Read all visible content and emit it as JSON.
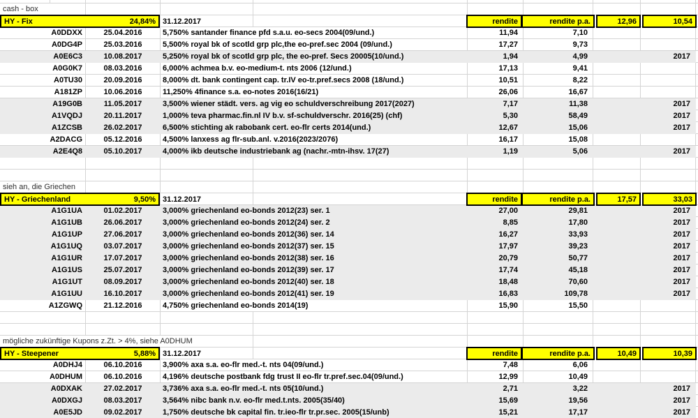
{
  "colors": {
    "header_highlight": "#ffff00",
    "row_highlight_fill": "#ebebeb",
    "gridline": "#d4d4d4",
    "text": "#000000"
  },
  "sections": [
    {
      "note": "cash - box",
      "header": {
        "label": "HY - Fix",
        "pct": "24,84%",
        "date": "31.12.2017",
        "col_rendite": "rendite",
        "col_rendite_pa": "rendite p.a.",
        "stat_1": "12,96",
        "stat_2": "10,54"
      },
      "rows": [
        {
          "id": "A0DDXX",
          "date": "25.04.2016",
          "desc": "5,750% santander finance pfd s.a.u. eo-secs 2004(09/und.)",
          "rendite": "11,94",
          "rendite_pa": "7,10",
          "year": "",
          "highlighted": false
        },
        {
          "id": "A0DG4P",
          "date": "25.03.2016",
          "desc": "5,500% royal bk of scotld grp plc,the eo-pref.sec 2004 (09/und.)",
          "rendite": "17,27",
          "rendite_pa": "9,73",
          "year": "",
          "highlighted": false
        },
        {
          "id": "A0E6C3",
          "date": "10.08.2017",
          "desc": "5,250% royal bk of scotld grp plc, the eo-pref. Secs 20005(10/und.)",
          "rendite": "1,94",
          "rendite_pa": "4,99",
          "year": "2017",
          "highlighted": true
        },
        {
          "id": "A0G0K7",
          "date": "08.03.2016",
          "desc": "6,000% achmea b.v. eo-medium-t. nts 2006 (12/und.)",
          "rendite": "17,13",
          "rendite_pa": "9,41",
          "year": "",
          "highlighted": false
        },
        {
          "id": "A0TU30",
          "date": "20.09.2016",
          "desc": "8,000% dt. bank contingent cap. tr.IV eo-tr.pref.secs 2008 (18/und.)",
          "rendite": "10,51",
          "rendite_pa": "8,22",
          "year": "",
          "highlighted": false
        },
        {
          "id": "A181ZP",
          "date": "10.06.2016",
          "desc": "11,250% 4finance s.a. eo-notes 2016(16/21)",
          "rendite": "26,06",
          "rendite_pa": "16,67",
          "year": "",
          "highlighted": false
        },
        {
          "id": "A19G0B",
          "date": "11.05.2017",
          "desc": "3,500% wiener städt. vers. ag vig eo schuldverschreibung 2017(2027)",
          "rendite": "7,17",
          "rendite_pa": "11,38",
          "year": "2017",
          "highlighted": true
        },
        {
          "id": "A1VQDJ",
          "date": "20.11.2017",
          "desc": "1,000% teva pharmac.fin.nl IV b.v. sf-schuldverschr. 2016(25) (chf)",
          "rendite": "5,30",
          "rendite_pa": "58,49",
          "year": "2017",
          "highlighted": true
        },
        {
          "id": "A1ZCSB",
          "date": "26.02.2017",
          "desc": "6,500% stichting ak rabobank cert. eo-flr certs 2014(und.)",
          "rendite": "12,67",
          "rendite_pa": "15,06",
          "year": "2017",
          "highlighted": true
        },
        {
          "id": "A2DACG",
          "date": "05.12.2016",
          "desc": "4,500% lanxess ag flr-sub.anl. v.2016(2023/2076)",
          "rendite": "16,17",
          "rendite_pa": "15,08",
          "year": "",
          "highlighted": false
        },
        {
          "id": "A2E4Q8",
          "date": "05.10.2017",
          "desc": "4,000% ikb deutsche industriebank ag (nachr.-mtn-ihsv. 17(27)",
          "rendite": "1,19",
          "rendite_pa": "5,06",
          "year": "2017",
          "highlighted": true
        }
      ],
      "empty_rows_after": 2
    },
    {
      "note": "sieh an, die Griechen",
      "header": {
        "label": "HY - Griechenland",
        "pct": "9,50%",
        "date": "31.12.2017",
        "col_rendite": "rendite",
        "col_rendite_pa": "rendite p.a.",
        "stat_1": "17,57",
        "stat_2": "33,03"
      },
      "rows": [
        {
          "id": "A1G1UA",
          "date": "01.02.2017",
          "desc": "3,000% griechenland eo-bonds 2012(23) ser. 1",
          "rendite": "27,00",
          "rendite_pa": "29,81",
          "year": "2017",
          "highlighted": true
        },
        {
          "id": "A1G1UB",
          "date": "26.06.2017",
          "desc": "3,000% griechenland eo-bonds 2012(24) ser. 2",
          "rendite": "8,85",
          "rendite_pa": "17,80",
          "year": "2017",
          "highlighted": true
        },
        {
          "id": "A1G1UP",
          "date": "27.06.2017",
          "desc": "3,000% griechenland eo-bonds 2012(36) ser. 14",
          "rendite": "16,27",
          "rendite_pa": "33,93",
          "year": "2017",
          "highlighted": true
        },
        {
          "id": "A1G1UQ",
          "date": "03.07.2017",
          "desc": "3,000% griechenland eo-bonds 2012(37) ser. 15",
          "rendite": "17,97",
          "rendite_pa": "39,23",
          "year": "2017",
          "highlighted": true
        },
        {
          "id": "A1G1UR",
          "date": "17.07.2017",
          "desc": "3,000% griechenland eo-bonds 2012(38) ser. 16",
          "rendite": "20,79",
          "rendite_pa": "50,77",
          "year": "2017",
          "highlighted": true
        },
        {
          "id": "A1G1US",
          "date": "25.07.2017",
          "desc": "3,000% griechenland eo-bonds 2012(39) ser. 17",
          "rendite": "17,74",
          "rendite_pa": "45,18",
          "year": "2017",
          "highlighted": true
        },
        {
          "id": "A1G1UT",
          "date": "08.09.2017",
          "desc": "3,000% griechenland eo-bonds 2012(40) ser. 18",
          "rendite": "18,48",
          "rendite_pa": "70,60",
          "year": "2017",
          "highlighted": true
        },
        {
          "id": "A1G1UU",
          "date": "16.10.2017",
          "desc": "3,000% griechenland eo-bonds 2012(41) ser. 19",
          "rendite": "16,83",
          "rendite_pa": "109,78",
          "year": "2017",
          "highlighted": true
        },
        {
          "id": "A1ZGWQ",
          "date": "21.12.2016",
          "desc": "4,750% griechenland eo-bonds 2014(19)",
          "rendite": "15,90",
          "rendite_pa": "15,50",
          "year": "",
          "highlighted": false
        }
      ],
      "empty_rows_after": 2
    },
    {
      "note": "mögliche zukünftige Kupons z.Zt. > 4%, siehe A0DHUM",
      "header": {
        "label": "HY - Steepener",
        "pct": "5,88%",
        "date": "31.12.2017",
        "col_rendite": "rendite",
        "col_rendite_pa": "rendite p.a.",
        "stat_1": "10,49",
        "stat_2": "10,39"
      },
      "rows": [
        {
          "id": "A0DHJ4",
          "date": "06.10.2016",
          "desc": "3,900% axa s.a. eo-flr med.-t. nts 04(09/und.)",
          "rendite": "7,48",
          "rendite_pa": "6,06",
          "year": "",
          "highlighted": false
        },
        {
          "id": "A0DHUM",
          "date": "06.10.2016",
          "desc": "4,196% deutsche postbank fdg trust II eo-flr tr.pref.sec.04(09/und.)",
          "rendite": "12,99",
          "rendite_pa": "10,49",
          "year": "",
          "highlighted": false
        },
        {
          "id": "A0DXAK",
          "date": "27.02.2017",
          "desc": "3,736% axa s.a. eo-flr med.-t. nts 05(10/und.)",
          "rendite": "2,71",
          "rendite_pa": "3,22",
          "year": "2017",
          "highlighted": true
        },
        {
          "id": "A0DXGJ",
          "date": "08.03.2017",
          "desc": "3,564% nibc bank n.v. eo-flr med.t.nts. 2005(35/40)",
          "rendite": "15,69",
          "rendite_pa": "19,56",
          "year": "2017",
          "highlighted": true
        },
        {
          "id": "A0E5JD",
          "date": "09.02.2017",
          "desc": "1,750% deutsche bk capital fin. tr.ieo-flr tr.pr.sec. 2005(15/unb)",
          "rendite": "15,21",
          "rendite_pa": "17,17",
          "year": "2017",
          "highlighted": true
        }
      ],
      "empty_rows_after": 0
    }
  ]
}
